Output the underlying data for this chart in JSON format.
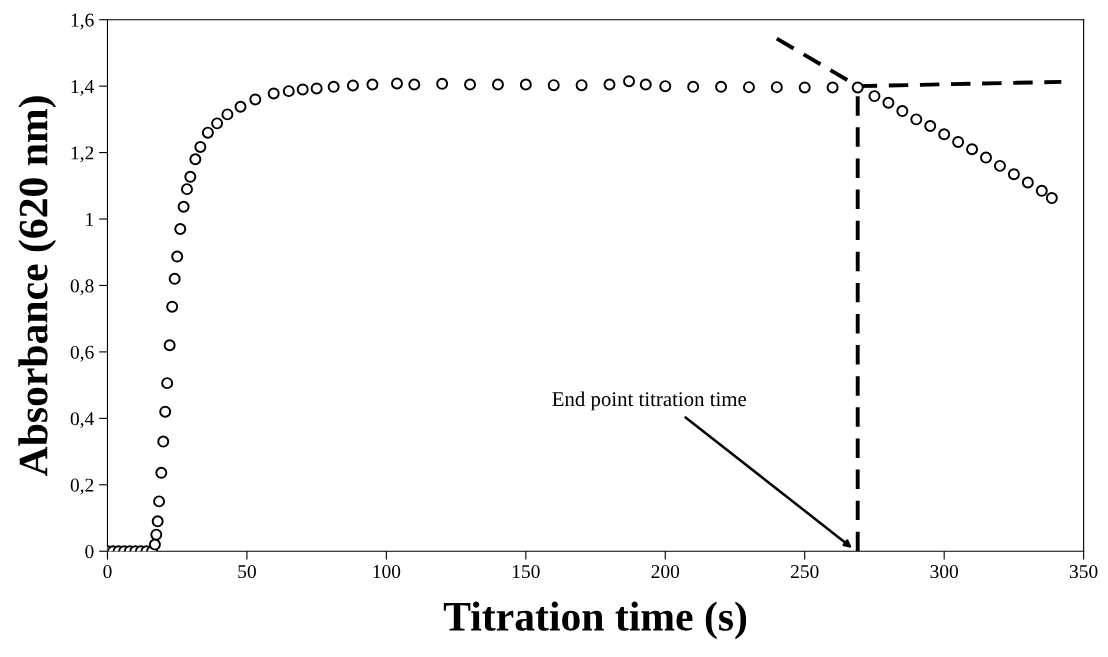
{
  "chart_data": {
    "type": "scatter",
    "xlabel": "Titration time (s)",
    "ylabel": "Absorbance (620 nm)",
    "xlim": [
      0,
      350
    ],
    "xticks": [
      0,
      50,
      100,
      150,
      200,
      250,
      300,
      350
    ],
    "ylim": [
      0,
      1.6
    ],
    "yticks": [
      0,
      {
        "value": 0.2,
        "label": "0,2"
      },
      {
        "value": 0.4,
        "label": "0,4"
      },
      {
        "value": 0.6,
        "label": "0,6"
      },
      {
        "value": 0.8,
        "label": "0,8"
      },
      1,
      {
        "value": 1.2,
        "label": "1,2"
      },
      {
        "value": 1.4,
        "label": "1,4"
      },
      {
        "value": 1.6,
        "label": "1,6"
      }
    ],
    "grid": false,
    "series": [
      {
        "color": "#000000",
        "marker": "circle",
        "x": [
          0,
          2,
          4,
          6,
          8,
          10,
          12,
          14,
          16,
          17,
          17.5,
          18,
          18.5,
          19.3,
          20,
          20.7,
          21.4,
          22.3,
          23.2,
          24.1,
          25.0,
          26.1,
          27.3,
          28.5,
          29.7,
          31.5,
          33.3,
          36,
          39.3,
          43,
          47.7,
          53,
          59.6,
          65,
          70,
          75,
          81.1,
          88,
          95,
          103.8,
          110,
          120,
          130,
          140,
          150,
          160,
          170,
          180,
          187,
          193,
          200,
          210,
          220,
          230,
          240,
          250,
          260,
          269,
          275,
          280,
          285,
          290,
          295,
          300,
          305,
          310,
          315,
          320,
          325,
          330,
          335,
          338.6
        ],
        "values": [
          0,
          0,
          0,
          0,
          0,
          0,
          0,
          0,
          0,
          0.02,
          0.05,
          0.09,
          0.15,
          0.236,
          0.33,
          0.42,
          0.506,
          0.62,
          0.736,
          0.82,
          0.887,
          0.97,
          1.037,
          1.09,
          1.127,
          1.18,
          1.217,
          1.26,
          1.288,
          1.315,
          1.338,
          1.36,
          1.378,
          1.385,
          1.39,
          1.393,
          1.398,
          1.402,
          1.405,
          1.408,
          1.405,
          1.407,
          1.405,
          1.405,
          1.405,
          1.403,
          1.403,
          1.405,
          1.415,
          1.405,
          1.4,
          1.398,
          1.398,
          1.397,
          1.397,
          1.396,
          1.396,
          1.396,
          1.37,
          1.35,
          1.325,
          1.3,
          1.28,
          1.255,
          1.232,
          1.21,
          1.185,
          1.16,
          1.135,
          1.11,
          1.085,
          1.063
        ]
      },
      {
        "type": "line",
        "color": "#000000",
        "marker": "none",
        "line_style": "dashed",
        "x": [
          240,
          269
        ],
        "values": [
          1.543,
          1.4
        ]
      },
      {
        "type": "line",
        "color": "#000000",
        "marker": "none",
        "line_style": "dashed",
        "x": [
          269,
          342
        ],
        "values": [
          1.4,
          1.413
        ]
      },
      {
        "type": "line",
        "color": "#000000",
        "marker": "none",
        "line_style": "dashed",
        "x": [
          269,
          269
        ],
        "values": [
          0,
          1.4
        ]
      }
    ],
    "annotations": [
      "End point titration time"
    ]
  }
}
